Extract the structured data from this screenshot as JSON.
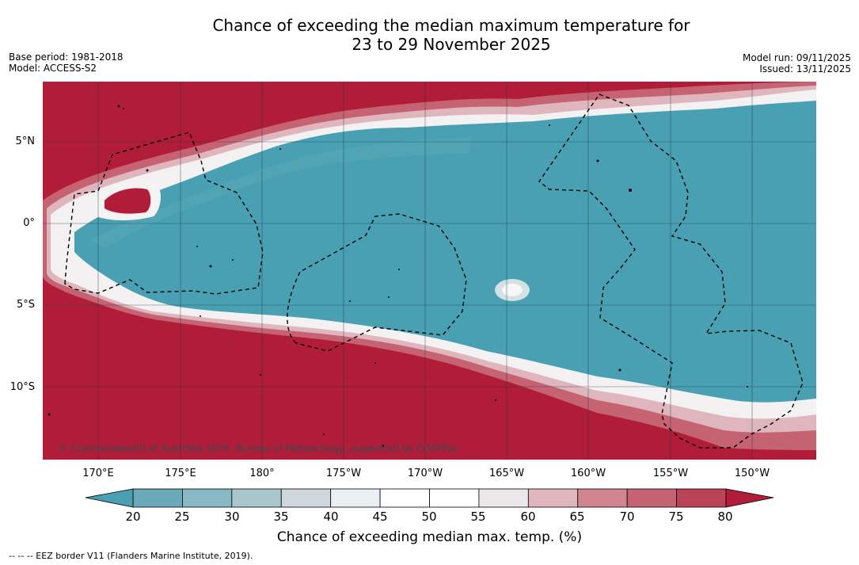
{
  "title": {
    "line1": "Chance of exceeding the median maximum temperature for",
    "line2": "23 to 29 November 2025"
  },
  "meta_left": {
    "base_period": "Base period: 1981-2018",
    "model": "Model: ACCESS-S2"
  },
  "meta_right": {
    "model_run": "Model run: 09/11/2025",
    "issued": "Issued: 13/11/2025"
  },
  "map": {
    "lat_labels": [
      "5°N",
      "0°",
      "5°S",
      "10°S"
    ],
    "lon_labels": [
      "170°E",
      "175°E",
      "180°",
      "175°W",
      "170°W",
      "165°W",
      "160°W",
      "155°W",
      "150°W"
    ],
    "copyright": "© Commonwealth of Australia 2025, Bureau of Meteorology, supported by COSPPac",
    "colors": {
      "warm_high": "#b11d39",
      "cool_low": "#48a0b2",
      "neutral": "#ffffff"
    }
  },
  "colorbar": {
    "ticks": [
      "20",
      "25",
      "30",
      "35",
      "40",
      "45",
      "50",
      "55",
      "60",
      "65",
      "70",
      "75",
      "80"
    ],
    "bin_colors": [
      "#6aa9b7",
      "#88b8c4",
      "#a9c6cc",
      "#ced8dc",
      "#eaeff2",
      "#ffffff",
      "#ffffff",
      "#ebe8ea",
      "#dfb6bd",
      "#d0858f",
      "#c66372",
      "#bb4257"
    ],
    "low_extend_color": "#48a0b2",
    "high_extend_color": "#b11d39",
    "label": "Chance of exceeding median max. temp. (%)"
  },
  "legend_note": "--  --  -- EEZ border V11 (Flanders Marine Institute, 2019)."
}
